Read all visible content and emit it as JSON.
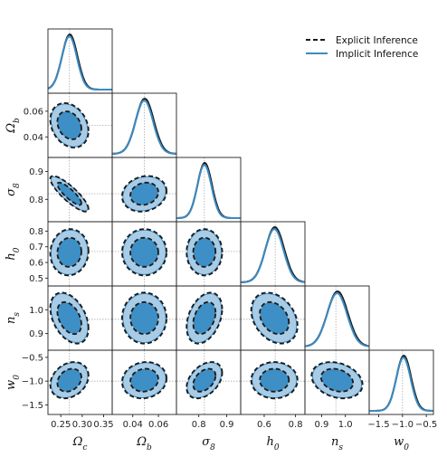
{
  "chart_data": {
    "type": "corner",
    "parameters": [
      {
        "key": "omega_c",
        "label": "Ω_c",
        "true": 0.27,
        "range": [
          0.22,
          0.37
        ],
        "ticks": [
          0.25,
          0.3,
          0.35
        ],
        "tick_labels": [
          "0.25",
          "0.30",
          "0.35"
        ],
        "mean": 0.27,
        "sd": 0.0175
      },
      {
        "key": "omega_b",
        "label": "Ω_b",
        "true": 0.049,
        "range": [
          0.024,
          0.074
        ],
        "ticks": [
          0.04,
          0.06
        ],
        "tick_labels": [
          "0.04",
          "0.06"
        ],
        "mean": 0.049,
        "sd": 0.0068
      },
      {
        "key": "sigma_8",
        "label": "σ_8",
        "true": 0.82,
        "range": [
          0.72,
          0.95
        ],
        "ticks": [
          0.8,
          0.9
        ],
        "tick_labels": [
          "0.8",
          "0.9"
        ],
        "mean": 0.82,
        "sd": 0.025
      },
      {
        "key": "h_0",
        "label": "h_0",
        "true": 0.67,
        "range": [
          0.45,
          0.86
        ],
        "ticks": [
          0.5,
          0.6,
          0.7,
          0.8
        ],
        "tick_labels": [
          "0.5",
          "0.6",
          "0.7",
          "0.8"
        ],
        "xticks": [
          0.6,
          0.8
        ],
        "xtick_labels": [
          "0.6",
          "0.8"
        ],
        "mean": 0.665,
        "sd": 0.058
      },
      {
        "key": "n_s",
        "label": "n_s",
        "true": 0.96,
        "range": [
          0.83,
          1.1
        ],
        "ticks": [
          0.9,
          1.0
        ],
        "tick_labels": [
          "0.9",
          "1.0"
        ],
        "mean": 0.965,
        "sd": 0.042
      },
      {
        "key": "w_0",
        "label": "w_0",
        "true": -1.0,
        "range": [
          -1.7,
          -0.35
        ],
        "ticks": [
          -1.5,
          -1.0,
          -0.5
        ],
        "tick_labels": [
          "−1.5",
          "−1.0",
          "−0.5"
        ],
        "mean": -0.98,
        "sd": 0.15
      }
    ],
    "correlations": [
      [
        1,
        -0.25,
        -0.85,
        0.05,
        -0.4,
        0.25
      ],
      [
        -0.25,
        1,
        0.15,
        0.0,
        0.0,
        0.1
      ],
      [
        -0.85,
        0.15,
        1,
        0.0,
        0.35,
        0.4
      ],
      [
        0.05,
        0.0,
        0.0,
        1,
        -0.3,
        0.0
      ],
      [
        -0.4,
        0.0,
        0.35,
        -0.3,
        1,
        -0.25
      ],
      [
        0.25,
        0.1,
        0.4,
        0.0,
        -0.25,
        1
      ]
    ],
    "series": [
      {
        "name": "Explicit Inference",
        "style": "dashed",
        "color": "#1a1a1a"
      },
      {
        "name": "Implicit Inference",
        "style": "filled",
        "color": "#3b8bc2",
        "fill_inner": "#3d8fc6",
        "fill_outer": "#a8cce6"
      }
    ],
    "legend_position": "top-right",
    "contour_levels": [
      "68%",
      "95%"
    ],
    "grid": false
  }
}
